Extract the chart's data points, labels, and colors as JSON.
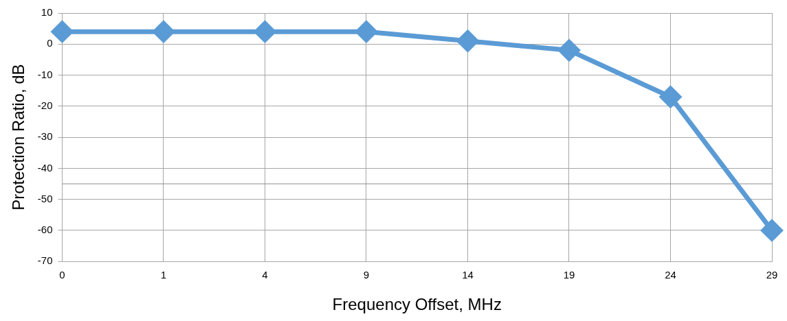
{
  "chart_data": {
    "type": "line",
    "xlabel": "Frequency Offset, MHz",
    "ylabel": "Protection Ratio, dB",
    "categories": [
      "0",
      "1",
      "4",
      "9",
      "14",
      "19",
      "24",
      "29"
    ],
    "series": [
      {
        "color": "#5b9bd5",
        "values": [
          4,
          4,
          4,
          4,
          1,
          -2,
          -17,
          -60
        ]
      }
    ],
    "ylim": [
      -70,
      10
    ],
    "yticks": [
      -70,
      -60,
      -50,
      -40,
      -30,
      -20,
      -10,
      0,
      10
    ],
    "ref_lines": [
      {
        "axis": "y",
        "value": -45,
        "color": "#8c8c8c"
      }
    ],
    "grid": true,
    "legend": false,
    "marker": "diamond",
    "line_style": "solid"
  }
}
